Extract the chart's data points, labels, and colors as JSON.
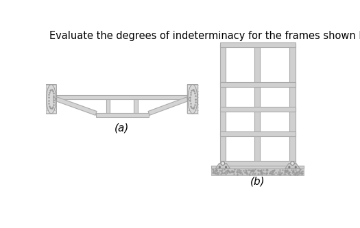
{
  "title": "Evaluate the degrees of indeterminacy for the frames shown below.",
  "title_fontsize": 10.5,
  "bg_color": "#ffffff",
  "member_fc": "#d4d4d4",
  "member_ec": "#aaaaaa",
  "label_a": "(a)",
  "label_b": "(b)",
  "label_fontsize": 11
}
